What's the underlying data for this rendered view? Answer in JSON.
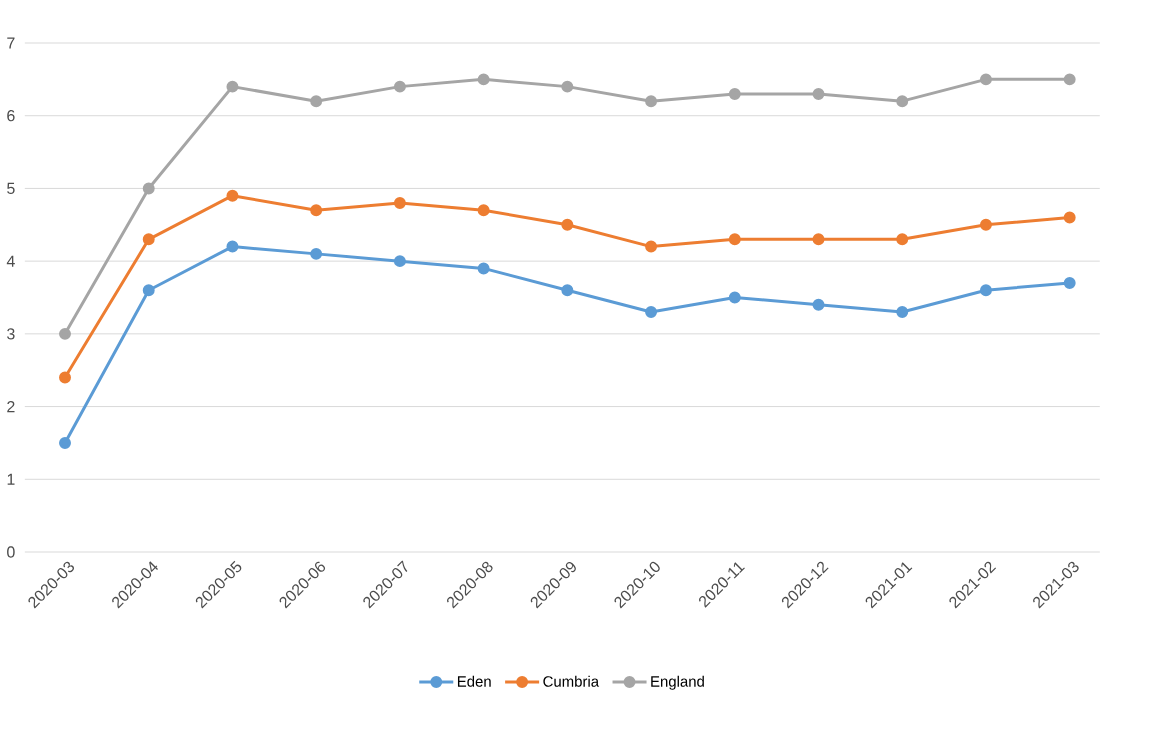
{
  "chart_data": {
    "type": "line",
    "categories": [
      "2020-03",
      "2020-04",
      "2020-05",
      "2020-06",
      "2020-07",
      "2020-08",
      "2020-09",
      "2020-10",
      "2020-11",
      "2020-12",
      "2021-01",
      "2021-02",
      "2021-03"
    ],
    "series": [
      {
        "name": "Eden",
        "color": "#5b9bd5",
        "values": [
          1.5,
          3.6,
          4.2,
          4.1,
          4.0,
          3.9,
          3.6,
          3.3,
          3.5,
          3.4,
          3.3,
          3.6,
          3.7
        ]
      },
      {
        "name": "Cumbria",
        "color": "#ed7d31",
        "values": [
          2.4,
          4.3,
          4.9,
          4.7,
          4.8,
          4.7,
          4.5,
          4.2,
          4.3,
          4.3,
          4.3,
          4.5,
          4.6
        ]
      },
      {
        "name": "England",
        "color": "#a5a5a5",
        "values": [
          3.0,
          5.0,
          6.4,
          6.2,
          6.4,
          6.5,
          6.4,
          6.2,
          6.3,
          6.3,
          6.2,
          6.5,
          6.5
        ]
      }
    ],
    "ylim": [
      0,
      7
    ],
    "yticks": [
      0,
      1,
      2,
      3,
      4,
      5,
      6,
      7
    ],
    "grid": "y",
    "legend": "bottom",
    "marker": "circle",
    "line_style": "solid"
  }
}
